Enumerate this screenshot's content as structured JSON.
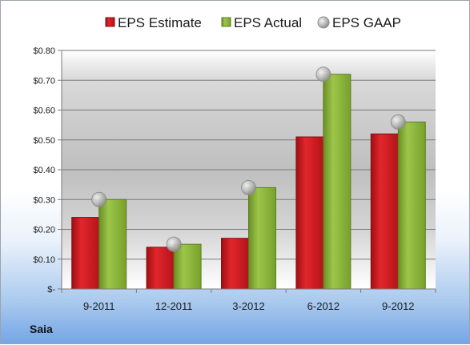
{
  "chart_data": {
    "type": "bar",
    "title": "",
    "company": "Saia",
    "categories": [
      "9-2011",
      "12-2011",
      "3-2012",
      "6-2012",
      "9-2012"
    ],
    "series": [
      {
        "name": "EPS Estimate",
        "kind": "bar",
        "color": "#cc1a1f",
        "values": [
          0.24,
          0.14,
          0.17,
          0.51,
          0.52
        ]
      },
      {
        "name": "EPS Actual",
        "kind": "bar",
        "color": "#8cb43c",
        "values": [
          0.3,
          0.15,
          0.34,
          0.72,
          0.56
        ]
      },
      {
        "name": "EPS GAAP",
        "kind": "marker",
        "color": "#b3b3b3",
        "values": [
          0.3,
          0.15,
          0.34,
          0.72,
          0.56
        ]
      }
    ],
    "ylim": [
      0,
      0.8
    ],
    "yticks": [
      0,
      0.1,
      0.2,
      0.3,
      0.4,
      0.5,
      0.6,
      0.7,
      0.8
    ],
    "ytick_labels": [
      "$-",
      "$0.10",
      "$0.20",
      "$0.30",
      "$0.40",
      "$0.50",
      "$0.60",
      "$0.70",
      "$0.80"
    ],
    "legend_position": "top",
    "grid": true
  }
}
